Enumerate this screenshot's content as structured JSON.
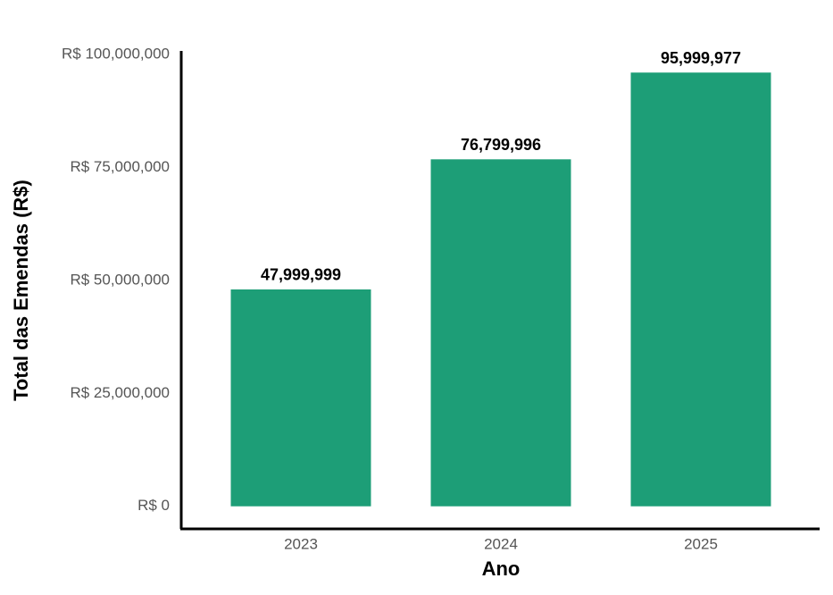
{
  "chart_data": {
    "type": "bar",
    "x_label": "Ano",
    "y_label": "Total das Emendas (R$)",
    "categories": [
      "2023",
      "2024",
      "2025"
    ],
    "values": [
      47999999,
      76799996,
      95999977
    ],
    "value_labels": [
      "47,999,999",
      "76,799,996",
      "95,999,977"
    ],
    "color": "#1d9e77",
    "ylim": [
      -5000000,
      100000000
    ],
    "yticks": [
      {
        "value": 0,
        "label": "R$ 0"
      },
      {
        "value": 25000000,
        "label": "R$ 25,000,000"
      },
      {
        "value": 50000000,
        "label": "R$ 50,000,000"
      },
      {
        "value": 75000000,
        "label": "R$ 75,000,000"
      },
      {
        "value": 100000000,
        "label": "R$ 100,000,000"
      }
    ],
    "grid": false
  }
}
